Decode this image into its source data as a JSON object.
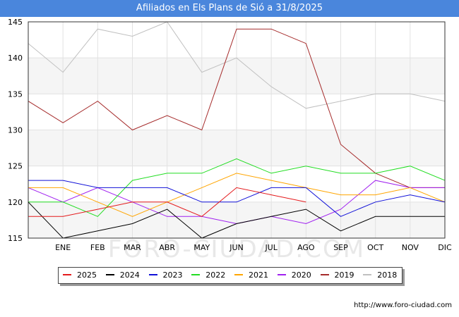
{
  "header": {
    "title": "Afiliados en Els Plans de Sió a 31/8/2025"
  },
  "footer": {
    "source": "http://www.foro-ciudad.com"
  },
  "watermark": "FORO-CIUDAD.COM",
  "chart_data": {
    "type": "line",
    "title": "Afiliados en Els Plans de Sió a 31/8/2025",
    "categories": [
      "",
      "ENE",
      "FEB",
      "MAR",
      "ABR",
      "MAY",
      "JUN",
      "JUL",
      "AGO",
      "SEP",
      "OCT",
      "NOV",
      "DIC"
    ],
    "ylim": [
      115,
      145
    ],
    "yticks": [
      115,
      120,
      125,
      130,
      135,
      140,
      145
    ],
    "grid": true,
    "legend_position": "bottom",
    "series": [
      {
        "name": "2025",
        "color": "#e41a1c",
        "values": [
          118,
          118,
          119,
          120,
          120,
          118,
          122,
          121,
          120,
          null,
          null,
          null,
          null
        ]
      },
      {
        "name": "2024",
        "color": "#000000",
        "values": [
          120,
          115,
          116,
          117,
          119,
          115,
          117,
          118,
          119,
          116,
          118,
          118,
          118
        ]
      },
      {
        "name": "2023",
        "color": "#1010d8",
        "values": [
          123,
          123,
          122,
          122,
          122,
          120,
          120,
          122,
          122,
          118,
          120,
          121,
          120
        ]
      },
      {
        "name": "2022",
        "color": "#22dd22",
        "values": [
          120,
          120,
          118,
          123,
          124,
          124,
          126,
          124,
          125,
          124,
          124,
          125,
          123
        ]
      },
      {
        "name": "2021",
        "color": "#ffa500",
        "values": [
          122,
          122,
          120,
          118,
          120,
          122,
          124,
          123,
          122,
          121,
          121,
          122,
          120
        ]
      },
      {
        "name": "2020",
        "color": "#a020f0",
        "values": [
          122,
          120,
          122,
          120,
          118,
          118,
          117,
          118,
          117,
          119,
          123,
          122,
          122
        ]
      },
      {
        "name": "2019",
        "color": "#a52a2a",
        "values": [
          134,
          131,
          134,
          130,
          132,
          130,
          144,
          144,
          142,
          128,
          124,
          122,
          122
        ]
      },
      {
        "name": "2018",
        "color": "#c0c0c0",
        "values": [
          142,
          138,
          144,
          143,
          145,
          138,
          140,
          136,
          133,
          134,
          135,
          135,
          134
        ]
      }
    ]
  }
}
